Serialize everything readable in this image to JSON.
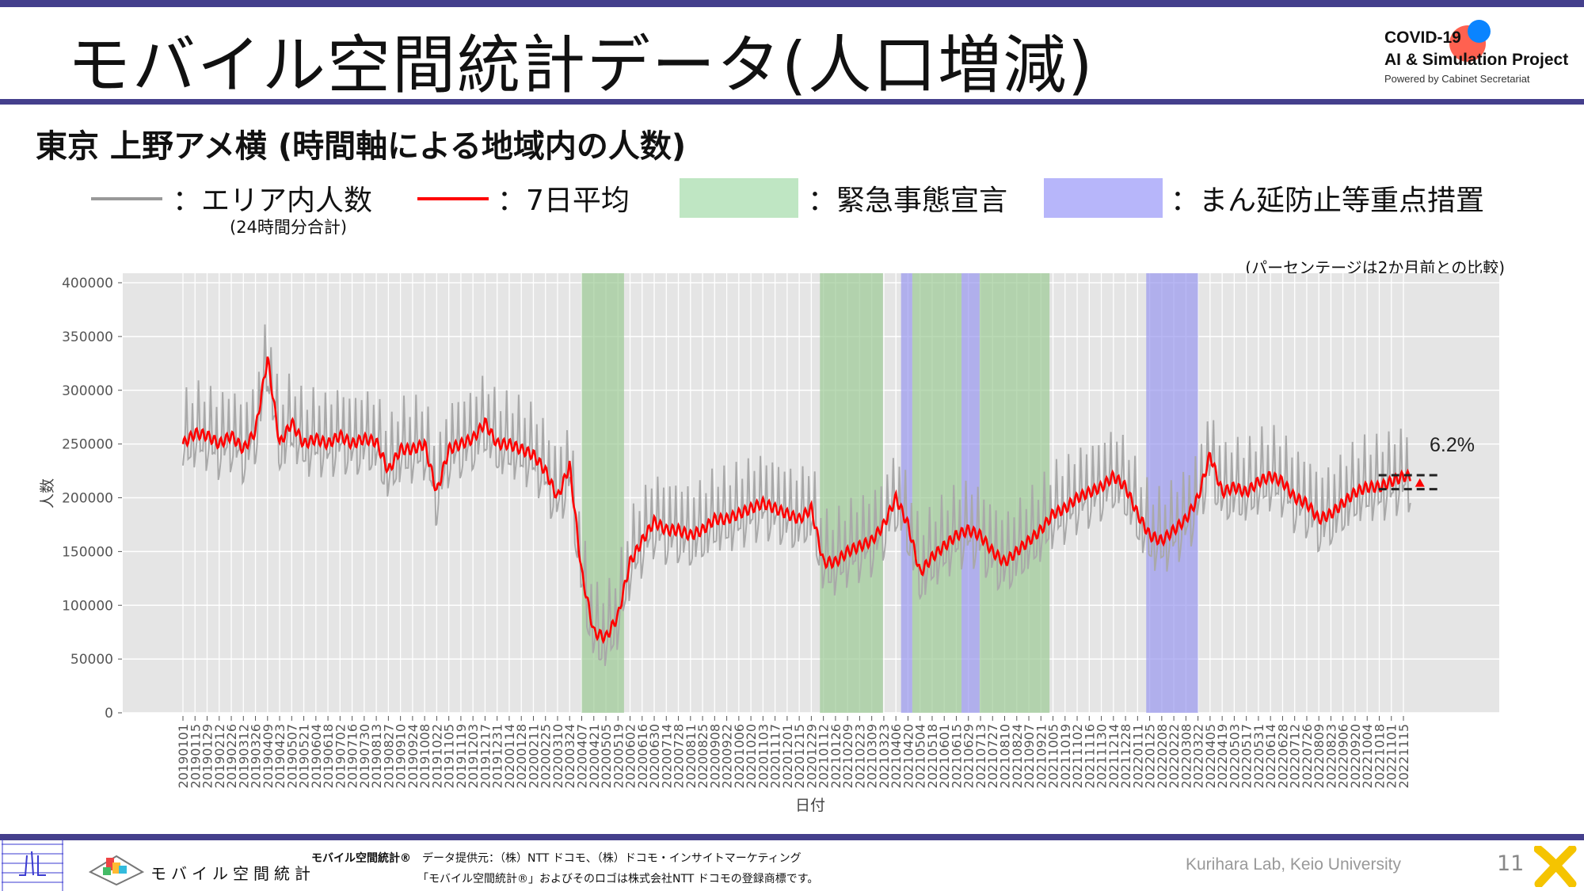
{
  "header": {
    "title": "モバイル空間統計データ(人口増減)",
    "logo_line1": "COVID-19",
    "logo_line2": "AI & Simulation Project",
    "logo_line3": "Powered by Cabinet Secretariat"
  },
  "subtitle": "東京 上野アメ横 (時間軸による地域内の人数)",
  "legend": {
    "area_label": "：エリア内人数",
    "area_sub": "(24時間分合計)",
    "avg_label": "：7日平均",
    "emergency_label": "：緊急事態宣言",
    "mambo_label": "：まん延防止等重点措置"
  },
  "note": "(パーセンテージは2か月前との比較)",
  "colors": {
    "brand": "#443f8c",
    "gray_series": "#a9a9a9",
    "red_series": "#ff0000",
    "emergency": "#b8ddb5",
    "mambo": "#b3b2f5",
    "plot_bg": "#e5e5e5"
  },
  "chart_data": {
    "type": "line",
    "xlabel": "日付",
    "ylabel": "人数",
    "ylim": [
      0,
      400000
    ],
    "yticks": [
      "0",
      "50000",
      "100000",
      "150000",
      "200000",
      "250000",
      "300000",
      "350000",
      "400000"
    ],
    "ytick_values": [
      0,
      50000,
      100000,
      150000,
      200000,
      250000,
      300000,
      350000,
      400000
    ],
    "grid": true,
    "annotation": "6.2%",
    "x_ticks": [
      "20190101",
      "20190115",
      "20190129",
      "20190212",
      "20190226",
      "20190312",
      "20190326",
      "20190409",
      "20190423",
      "20190507",
      "20190521",
      "20190604",
      "20190618",
      "20190702",
      "20190716",
      "20190730",
      "20190813",
      "20190827",
      "20190910",
      "20190924",
      "20191008",
      "20191022",
      "20191105",
      "20191119",
      "20191203",
      "20191217",
      "20191231",
      "20200114",
      "20200128",
      "20200211",
      "20200225",
      "20200310",
      "20200324",
      "20200407",
      "20200421",
      "20200505",
      "20200519",
      "20200602",
      "20200616",
      "20200630",
      "20200714",
      "20200728",
      "20200811",
      "20200825",
      "20200908",
      "20200922",
      "20201006",
      "20201020",
      "20201103",
      "20201117",
      "20201201",
      "20201215",
      "20201229",
      "20210112",
      "20210126",
      "20210209",
      "20210223",
      "20210309",
      "20210323",
      "20210406",
      "20210420",
      "20210504",
      "20210518",
      "20210601",
      "20210615",
      "20210629",
      "20210713",
      "20210727",
      "20210810",
      "20210824",
      "20210907",
      "20210921",
      "20211005",
      "20211019",
      "20211102",
      "20211116",
      "20211130",
      "20211214",
      "20211228",
      "20220111",
      "20220125",
      "20220208",
      "20220222",
      "20220308",
      "20220322",
      "20220405",
      "20220419",
      "20220503",
      "20220517",
      "20220531",
      "20220614",
      "20220628",
      "20220712",
      "20220726",
      "20220809",
      "20220823",
      "20220906",
      "20220920",
      "20221004",
      "20221018",
      "20221101",
      "20221115"
    ],
    "series": [
      {
        "name": "7日平均",
        "values": [
          250000,
          260000,
          258000,
          250000,
          258000,
          245000,
          262000,
          330000,
          250000,
          270000,
          250000,
          255000,
          250000,
          258000,
          250000,
          255000,
          252000,
          225000,
          245000,
          245000,
          250000,
          205000,
          245000,
          250000,
          255000,
          270000,
          250000,
          250000,
          245000,
          240000,
          225000,
          200000,
          230000,
          130000,
          75000,
          70000,
          90000,
          140000,
          160000,
          178000,
          170000,
          170000,
          165000,
          170000,
          180000,
          180000,
          185000,
          190000,
          195000,
          190000,
          185000,
          180000,
          190000,
          140000,
          140000,
          150000,
          155000,
          160000,
          175000,
          200000,
          175000,
          130000,
          145000,
          155000,
          165000,
          170000,
          165000,
          150000,
          140000,
          150000,
          160000,
          170000,
          185000,
          190000,
          200000,
          205000,
          210000,
          220000,
          210000,
          185000,
          165000,
          160000,
          170000,
          180000,
          200000,
          240000,
          205000,
          210000,
          205000,
          215000,
          220000,
          215000,
          200000,
          195000,
          180000,
          185000,
          195000,
          205000,
          210000,
          210000,
          215000,
          220000
        ]
      },
      {
        "name": "エリア内人数",
        "weekly_spread": 40000
      }
    ],
    "shaded_periods": [
      {
        "type": "緊急事態宣言",
        "start": "20200407",
        "end": "20200525"
      },
      {
        "type": "緊急事態宣言",
        "start": "20210108",
        "end": "20210321"
      },
      {
        "type": "まん延防止等重点措置",
        "start": "20210412",
        "end": "20210424"
      },
      {
        "type": "緊急事態宣言",
        "start": "20210425",
        "end": "20210620"
      },
      {
        "type": "まん延防止等重点措置",
        "start": "20210621",
        "end": "20210711"
      },
      {
        "type": "緊急事態宣言",
        "start": "20210712",
        "end": "20210930"
      },
      {
        "type": "まん延防止等重点措置",
        "start": "20220121",
        "end": "20220321"
      }
    ],
    "comparison": {
      "from": 208000,
      "to": 221000
    }
  },
  "footer": {
    "brand": "モバイル空間統計",
    "brand_mark": "モバイル空間統計®",
    "provider": "データ提供元：（株）NTT ドコモ、（株）ドコモ・インサイトマーケティング",
    "trademark": "「モバイル空間統計®」およびそのロゴは株式会社NTT ドコモの登録商標です。",
    "lab": "Kurihara Lab, Keio University",
    "page": "11"
  }
}
